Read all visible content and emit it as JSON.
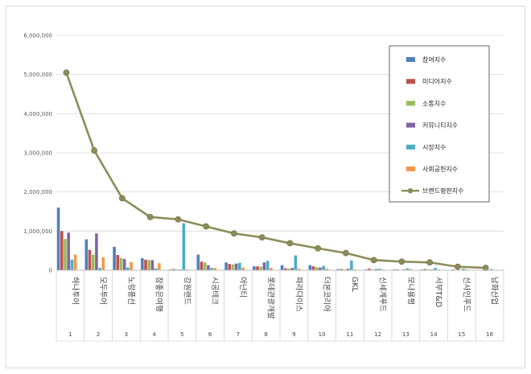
{
  "chart_data": {
    "type": "bar",
    "title": "",
    "xlabel": "",
    "ylabel": "",
    "ylim": [
      0,
      6000000
    ],
    "y_ticks": [
      "0",
      "1,000,000",
      "2,000,000",
      "3,000,000",
      "4,000,000",
      "5,000,000",
      "6,000,000"
    ],
    "grid": true,
    "legend_position": "top-right",
    "categories": [
      "하나투어",
      "모두투어",
      "노랑풍선",
      "참좋은여행",
      "강원랜드",
      "시공테크",
      "아난티",
      "롯데관광개발",
      "파라다이스",
      "더본코리아",
      "GKL",
      "신세계푸드",
      "모나용평",
      "서부T&D",
      "선사인푸드",
      "남화산업"
    ],
    "category_numbers": [
      "1",
      "2",
      "3",
      "4",
      "5",
      "6",
      "7",
      "8",
      "9",
      "10",
      "11",
      "12",
      "13",
      "14",
      "15",
      "16"
    ],
    "series": [
      {
        "name": "참여지수",
        "color": "#4f81bd",
        "values": [
          1600000,
          790000,
          600000,
          310000,
          20000,
          400000,
          200000,
          100000,
          130000,
          130000,
          30000,
          20000,
          20000,
          20000,
          10000,
          10000
        ]
      },
      {
        "name": "미디어지수",
        "color": "#c0504d",
        "values": [
          1000000,
          520000,
          390000,
          270000,
          30000,
          220000,
          160000,
          100000,
          50000,
          100000,
          30000,
          40000,
          20000,
          30000,
          20000,
          10000
        ]
      },
      {
        "name": "소통지수",
        "color": "#9bbb59",
        "values": [
          800000,
          400000,
          310000,
          260000,
          20000,
          200000,
          150000,
          90000,
          40000,
          80000,
          20000,
          20000,
          10000,
          20000,
          10000,
          10000
        ]
      },
      {
        "name": "커뮤니티지수",
        "color": "#8064a2",
        "values": [
          960000,
          940000,
          290000,
          260000,
          20000,
          130000,
          170000,
          200000,
          60000,
          70000,
          40000,
          30000,
          20000,
          20000,
          10000,
          10000
        ]
      },
      {
        "name": "시장지수",
        "color": "#4bacc6",
        "values": [
          270000,
          60000,
          70000,
          50000,
          1200000,
          60000,
          190000,
          240000,
          380000,
          110000,
          250000,
          40000,
          50000,
          60000,
          40000,
          30000
        ]
      },
      {
        "name": "사회공헌지수",
        "color": "#f79646",
        "values": [
          400000,
          330000,
          210000,
          180000,
          20000,
          60000,
          70000,
          60000,
          40000,
          40000,
          20000,
          20000,
          30000,
          20000,
          20000,
          10000
        ]
      },
      {
        "name": "브랜드평판지수",
        "color": "#8c8c5a",
        "type": "line",
        "values": [
          5050000,
          3060000,
          1840000,
          1360000,
          1300000,
          1120000,
          940000,
          840000,
          690000,
          560000,
          440000,
          260000,
          220000,
          200000,
          90000,
          60000
        ]
      }
    ]
  }
}
